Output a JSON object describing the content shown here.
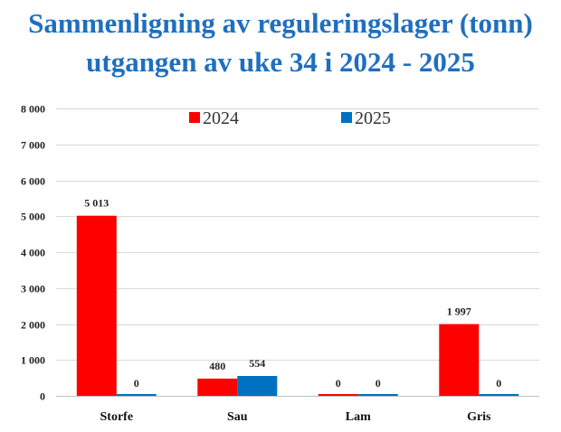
{
  "chart_data": {
    "type": "bar",
    "title": "Sammenligning av reguleringslager (tonn)",
    "subtitle": "utgangen av uke 34 i 2024 - 2025",
    "categories": [
      "Storfe",
      "Sau",
      "Lam",
      "Gris"
    ],
    "series": [
      {
        "name": "2024",
        "color": "#ff0000",
        "values": [
          5013,
          480,
          0,
          1997
        ],
        "labels": [
          "5 013",
          "480",
          "0",
          "1 997"
        ]
      },
      {
        "name": "2025",
        "color": "#0070c0",
        "values": [
          0,
          554,
          0,
          0
        ],
        "labels": [
          "0",
          "554",
          "0",
          "0"
        ]
      }
    ],
    "ylim": [
      0,
      8000
    ],
    "yticks": [
      0,
      1000,
      2000,
      3000,
      4000,
      5000,
      6000,
      7000,
      8000
    ],
    "ytick_labels": [
      "0",
      "1 000",
      "2 000",
      "3 000",
      "4 000",
      "5 000",
      "6 000",
      "7 000",
      "8 000"
    ],
    "xlabel": "",
    "ylabel": "",
    "grid": true,
    "legend_position": "top-center"
  }
}
